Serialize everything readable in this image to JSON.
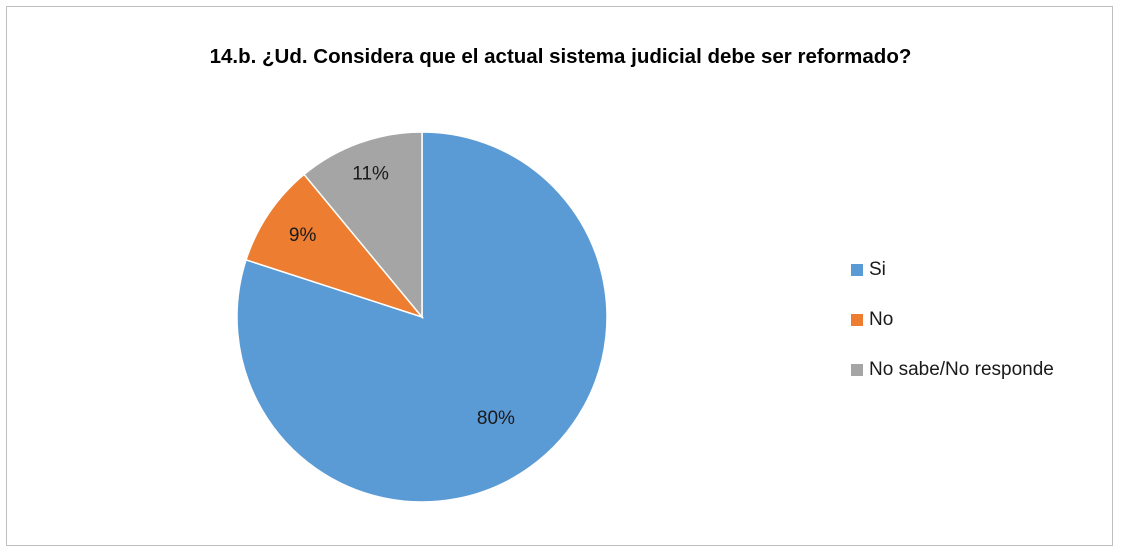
{
  "chart_data": {
    "type": "pie",
    "title": "14.b. ¿Ud. Considera que el actual sistema judicial debe ser reformado?",
    "slices": [
      {
        "name": "Si",
        "value": 80,
        "label": "80%",
        "color": "#5b9bd5"
      },
      {
        "name": "No",
        "value": 9,
        "label": "9%",
        "color": "#ed7d31"
      },
      {
        "name": "No sabe/No responde",
        "value": 11,
        "label": "11%",
        "color": "#a5a5a5"
      }
    ],
    "legend_position": "right",
    "start_angle": "12 o'clock",
    "direction": "clockwise"
  }
}
